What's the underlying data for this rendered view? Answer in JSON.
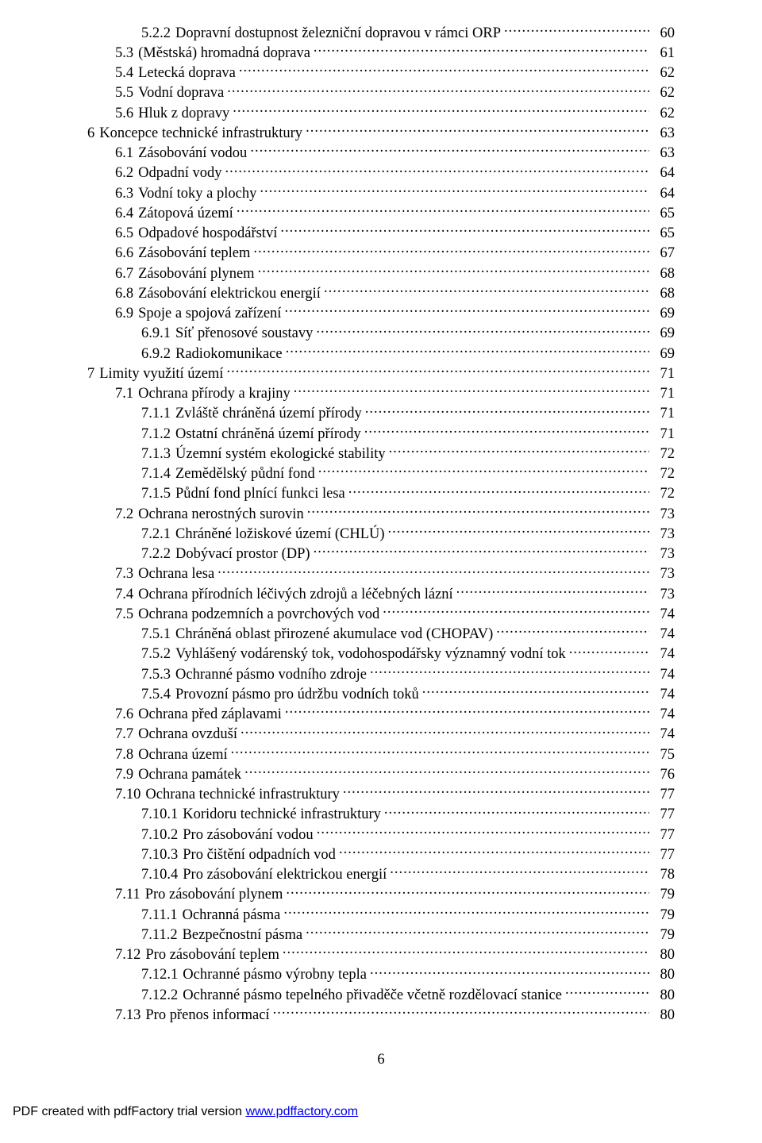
{
  "page_number": "6",
  "footer": {
    "prefix": "PDF created with pdfFactory trial version ",
    "link_text": "www.pdffactory.com"
  },
  "toc": [
    {
      "indent": 2,
      "num": "5.2.2",
      "label": "Dopravní dostupnost železniční dopravou v rámci ORP",
      "page": "60"
    },
    {
      "indent": 1,
      "num": "5.3",
      "label": "(Městská) hromadná doprava",
      "page": "61"
    },
    {
      "indent": 1,
      "num": "5.4",
      "label": "Letecká doprava",
      "page": "62"
    },
    {
      "indent": 1,
      "num": "5.5",
      "label": "Vodní doprava",
      "page": "62"
    },
    {
      "indent": 1,
      "num": "5.6",
      "label": "Hluk z dopravy",
      "page": "62"
    },
    {
      "indent": 0,
      "num": "6",
      "label": "Koncepce technické infrastruktury",
      "page": "63"
    },
    {
      "indent": 1,
      "num": "6.1",
      "label": "Zásobování vodou",
      "page": "63"
    },
    {
      "indent": 1,
      "num": "6.2",
      "label": "Odpadní vody",
      "page": "64"
    },
    {
      "indent": 1,
      "num": "6.3",
      "label": "Vodní toky a plochy",
      "page": "64"
    },
    {
      "indent": 1,
      "num": "6.4",
      "label": "Zátopová území",
      "page": "65"
    },
    {
      "indent": 1,
      "num": "6.5",
      "label": "Odpadové hospodářství",
      "page": "65"
    },
    {
      "indent": 1,
      "num": "6.6",
      "label": "Zásobování teplem",
      "page": "67"
    },
    {
      "indent": 1,
      "num": "6.7",
      "label": "Zásobování plynem",
      "page": "68"
    },
    {
      "indent": 1,
      "num": "6.8",
      "label": "Zásobování elektrickou energií",
      "page": "68"
    },
    {
      "indent": 1,
      "num": "6.9",
      "label": "Spoje a spojová zařízení",
      "page": "69"
    },
    {
      "indent": 2,
      "num": "6.9.1",
      "label": "Síť přenosové soustavy",
      "page": "69"
    },
    {
      "indent": 2,
      "num": "6.9.2",
      "label": "Radiokomunikace",
      "page": "69"
    },
    {
      "indent": 0,
      "num": "7",
      "label": "Limity využití území",
      "page": "71"
    },
    {
      "indent": 1,
      "num": "7.1",
      "label": "Ochrana přírody a krajiny",
      "page": "71"
    },
    {
      "indent": 2,
      "num": "7.1.1",
      "label": "Zvláště chráněná území přírody",
      "page": "71"
    },
    {
      "indent": 2,
      "num": "7.1.2",
      "label": "Ostatní chráněná území přírody",
      "page": "71"
    },
    {
      "indent": 2,
      "num": "7.1.3",
      "label": "Územní systém ekologické stability",
      "page": "72"
    },
    {
      "indent": 2,
      "num": "7.1.4",
      "label": "Zemědělský půdní fond",
      "page": "72"
    },
    {
      "indent": 2,
      "num": "7.1.5",
      "label": "Půdní fond plnící funkci lesa",
      "page": "72"
    },
    {
      "indent": 1,
      "num": "7.2",
      "label": "Ochrana nerostných surovin",
      "page": "73"
    },
    {
      "indent": 2,
      "num": "7.2.1",
      "label": "Chráněné ložiskové území (CHLÚ)",
      "page": "73"
    },
    {
      "indent": 2,
      "num": "7.2.2",
      "label": "Dobývací prostor (DP)",
      "page": "73"
    },
    {
      "indent": 1,
      "num": "7.3",
      "label": "Ochrana lesa",
      "page": "73"
    },
    {
      "indent": 1,
      "num": "7.4",
      "label": "Ochrana přírodních léčivých zdrojů a léčebných lázní",
      "page": "73"
    },
    {
      "indent": 1,
      "num": "7.5",
      "label": "Ochrana podzemních a povrchových vod",
      "page": "74"
    },
    {
      "indent": 2,
      "num": "7.5.1",
      "label": "Chráněná oblast přirozené akumulace vod (CHOPAV)",
      "page": "74"
    },
    {
      "indent": 2,
      "num": "7.5.2",
      "label": "Vyhlášený vodárenský tok, vodohospodářsky významný vodní tok",
      "page": "74"
    },
    {
      "indent": 2,
      "num": "7.5.3",
      "label": "Ochranné pásmo vodního zdroje",
      "page": "74"
    },
    {
      "indent": 2,
      "num": "7.5.4",
      "label": "Provozní pásmo pro údržbu vodních toků",
      "page": "74"
    },
    {
      "indent": 1,
      "num": "7.6",
      "label": "Ochrana před záplavami",
      "page": "74"
    },
    {
      "indent": 1,
      "num": "7.7",
      "label": "Ochrana ovzduší",
      "page": "74"
    },
    {
      "indent": 1,
      "num": "7.8",
      "label": "Ochrana území",
      "page": "75"
    },
    {
      "indent": 1,
      "num": "7.9",
      "label": "Ochrana památek",
      "page": "76"
    },
    {
      "indent": 1,
      "num": "7.10",
      "label": "Ochrana technické infrastruktury",
      "page": "77"
    },
    {
      "indent": 2,
      "num": "7.10.1",
      "label": "Koridoru technické infrastruktury",
      "page": "77"
    },
    {
      "indent": 2,
      "num": "7.10.2",
      "label": "Pro zásobování vodou",
      "page": "77"
    },
    {
      "indent": 2,
      "num": "7.10.3",
      "label": "Pro čištění odpadních vod",
      "page": "77"
    },
    {
      "indent": 2,
      "num": "7.10.4",
      "label": "Pro zásobování elektrickou energií",
      "page": "78"
    },
    {
      "indent": 1,
      "num": "7.11",
      "label": "Pro zásobování plynem",
      "page": "79"
    },
    {
      "indent": 2,
      "num": "7.11.1",
      "label": "Ochranná pásma",
      "page": "79"
    },
    {
      "indent": 2,
      "num": "7.11.2",
      "label": "Bezpečnostní pásma",
      "page": "79"
    },
    {
      "indent": 1,
      "num": "7.12",
      "label": "Pro zásobování teplem",
      "page": "80"
    },
    {
      "indent": 2,
      "num": "7.12.1",
      "label": "Ochranné pásmo výrobny tepla",
      "page": "80"
    },
    {
      "indent": 2,
      "num": "7.12.2",
      "label": "Ochranné pásmo tepelného přivaděče včetně rozdělovací stanice",
      "page": "80"
    },
    {
      "indent": 1,
      "num": "7.13",
      "label": "Pro přenos informací",
      "page": "80"
    }
  ]
}
